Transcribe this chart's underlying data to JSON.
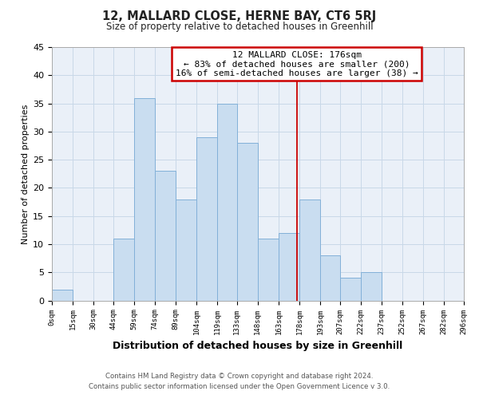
{
  "title": "12, MALLARD CLOSE, HERNE BAY, CT6 5RJ",
  "subtitle": "Size of property relative to detached houses in Greenhill",
  "xlabel": "Distribution of detached houses by size in Greenhill",
  "ylabel": "Number of detached properties",
  "footer_line1": "Contains HM Land Registry data © Crown copyright and database right 2024.",
  "footer_line2": "Contains public sector information licensed under the Open Government Licence v 3.0.",
  "annotation_line1": "12 MALLARD CLOSE: 176sqm",
  "annotation_line2": "← 83% of detached houses are smaller (200)",
  "annotation_line3": "16% of semi-detached houses are larger (38) →",
  "bar_edges": [
    0,
    15,
    30,
    44,
    59,
    74,
    89,
    104,
    119,
    133,
    148,
    163,
    178,
    193,
    207,
    222,
    237,
    252,
    267,
    282,
    296
  ],
  "bar_heights": [
    2,
    0,
    0,
    11,
    36,
    23,
    18,
    29,
    35,
    28,
    11,
    12,
    18,
    8,
    4,
    5,
    0,
    0,
    0,
    0
  ],
  "tick_labels": [
    "0sqm",
    "15sqm",
    "30sqm",
    "44sqm",
    "59sqm",
    "74sqm",
    "89sqm",
    "104sqm",
    "119sqm",
    "133sqm",
    "148sqm",
    "163sqm",
    "178sqm",
    "193sqm",
    "207sqm",
    "222sqm",
    "237sqm",
    "252sqm",
    "267sqm",
    "282sqm",
    "296sqm"
  ],
  "bar_color": "#c9ddf0",
  "bar_edge_color": "#82b0d8",
  "vline_x": 176,
  "vline_color": "#cc0000",
  "annotation_box_edge_color": "#cc0000",
  "grid_color": "#c8d8e8",
  "bg_color": "#ffffff",
  "plot_bg_color": "#eaf0f8",
  "ylim": [
    0,
    45
  ],
  "yticks": [
    0,
    5,
    10,
    15,
    20,
    25,
    30,
    35,
    40,
    45
  ]
}
